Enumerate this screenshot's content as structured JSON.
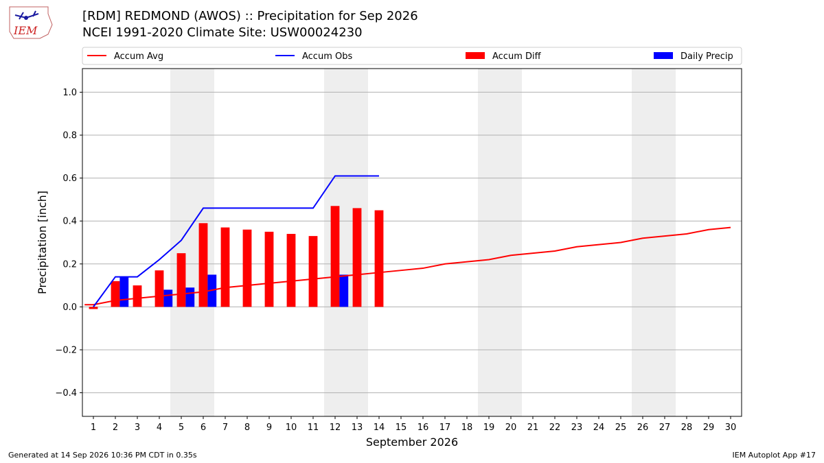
{
  "header": {
    "title_line1": "[RDM] REDMOND (AWOS) :: Precipitation for Sep 2026",
    "title_line2": "NCEI 1991-2020 Climate Site: USW00024230",
    "logo_text": "IEM"
  },
  "footer": {
    "left": "Generated at 14 Sep 2026 10:36 PM CDT in 0.35s",
    "right": "IEM Autoplot App #17"
  },
  "colors": {
    "accum_avg": "#ff0000",
    "accum_obs": "#0000ff",
    "accum_diff": "#ff0000",
    "daily_precip": "#0000ff",
    "weekend_shade": "#eeeeee",
    "grid": "#b0b0b0"
  },
  "chart_data": {
    "type": "bar",
    "xlabel": "September 2026",
    "ylabel": "Precipitation [inch]",
    "xlim": [
      0.5,
      30.5
    ],
    "ylim": [
      -0.51,
      1.11
    ],
    "yticks": [
      -0.4,
      -0.2,
      0.0,
      0.2,
      0.4,
      0.6,
      0.8,
      1.0
    ],
    "ytick_labels": [
      "−0.4",
      "−0.2",
      "0.0",
      "0.2",
      "0.4",
      "0.6",
      "0.8",
      "1.0"
    ],
    "xticks": [
      1,
      2,
      3,
      4,
      5,
      6,
      7,
      8,
      9,
      10,
      11,
      12,
      13,
      14,
      15,
      16,
      17,
      18,
      19,
      20,
      21,
      22,
      23,
      24,
      25,
      26,
      27,
      28,
      29,
      30
    ],
    "grid": "horizontal",
    "legend_position": "top",
    "weekend_shading": [
      [
        4.5,
        6.5
      ],
      [
        11.5,
        13.5
      ],
      [
        18.5,
        20.5
      ],
      [
        25.5,
        27.5
      ]
    ],
    "series": [
      {
        "name": "Accum Avg",
        "kind": "line",
        "x": [
          0.6,
          1,
          2,
          3,
          4,
          5,
          6,
          7,
          8,
          9,
          10,
          11,
          12,
          13,
          14,
          15,
          16,
          17,
          18,
          19,
          20,
          21,
          22,
          23,
          24,
          25,
          26,
          27,
          28,
          29,
          30
        ],
        "values": [
          0.01,
          0.01,
          0.03,
          0.04,
          0.05,
          0.06,
          0.07,
          0.09,
          0.1,
          0.11,
          0.12,
          0.13,
          0.14,
          0.15,
          0.16,
          0.17,
          0.18,
          0.2,
          0.21,
          0.22,
          0.24,
          0.25,
          0.26,
          0.28,
          0.29,
          0.3,
          0.32,
          0.33,
          0.34,
          0.36,
          0.37
        ]
      },
      {
        "name": "Accum Obs",
        "kind": "line",
        "x": [
          1,
          2,
          3,
          4,
          5,
          6,
          7,
          8,
          9,
          10,
          11,
          12,
          13,
          14
        ],
        "values": [
          0.0,
          0.14,
          0.14,
          0.22,
          0.31,
          0.46,
          0.46,
          0.46,
          0.46,
          0.46,
          0.46,
          0.61,
          0.61,
          0.61
        ]
      },
      {
        "name": "Accum Diff",
        "kind": "bar",
        "x": [
          1,
          2,
          3,
          4,
          5,
          6,
          7,
          8,
          9,
          10,
          11,
          12,
          13,
          14
        ],
        "values": [
          -0.01,
          0.12,
          0.1,
          0.17,
          0.25,
          0.39,
          0.37,
          0.36,
          0.35,
          0.34,
          0.33,
          0.47,
          0.46,
          0.45
        ]
      },
      {
        "name": "Daily Precip",
        "kind": "bar",
        "x": [
          2,
          4,
          5,
          6,
          12
        ],
        "values": [
          0.14,
          0.08,
          0.09,
          0.15,
          0.15
        ]
      }
    ]
  }
}
